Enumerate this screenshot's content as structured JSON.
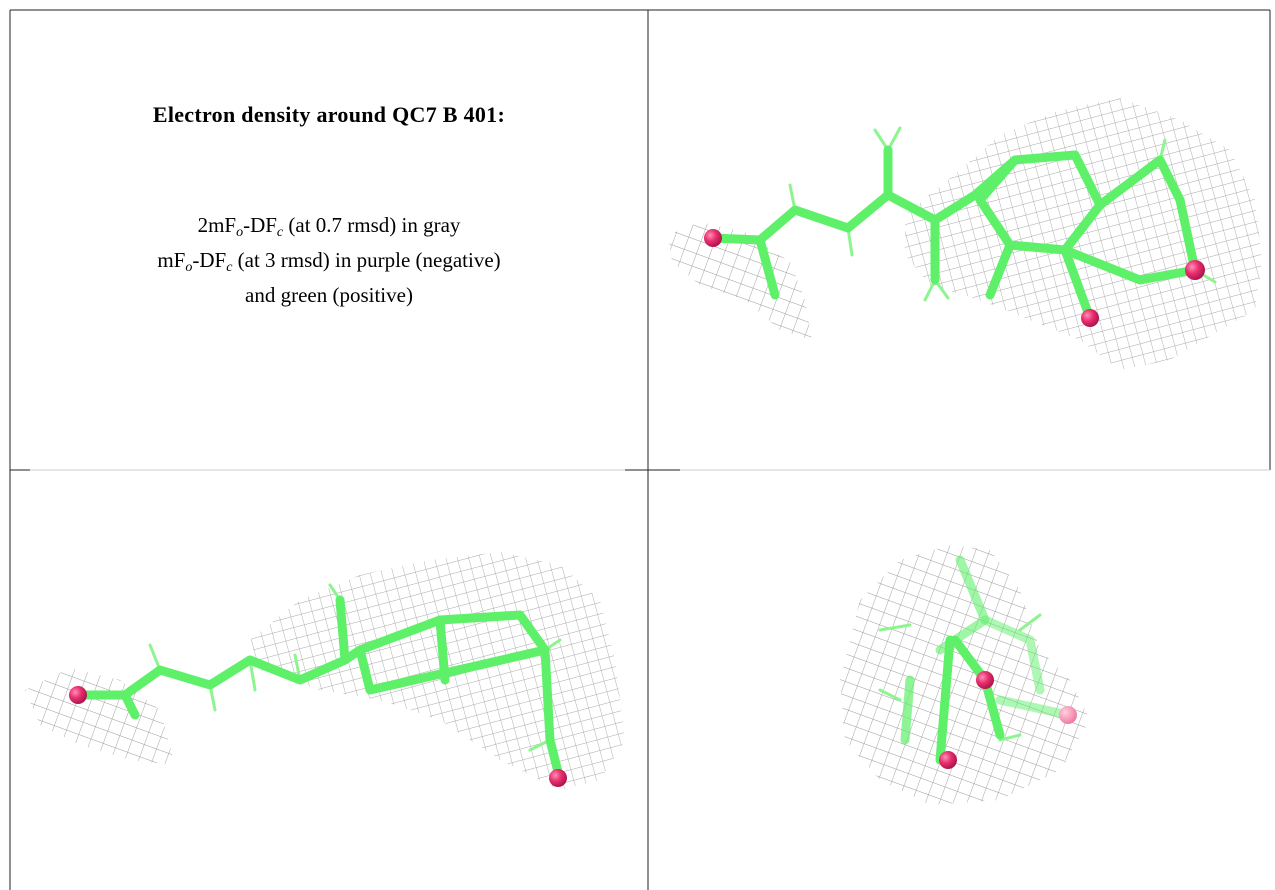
{
  "title": "Electron density around QC7 B 401:",
  "description": [
    [
      "2mF",
      "o",
      "-DF",
      "c",
      " (at 0.7 rmsd) in gray"
    ],
    [
      "mF",
      "o",
      "-DF",
      "c",
      " (at 3 rmsd) in purple (negative)"
    ],
    [
      "and green (positive)"
    ]
  ]
}
